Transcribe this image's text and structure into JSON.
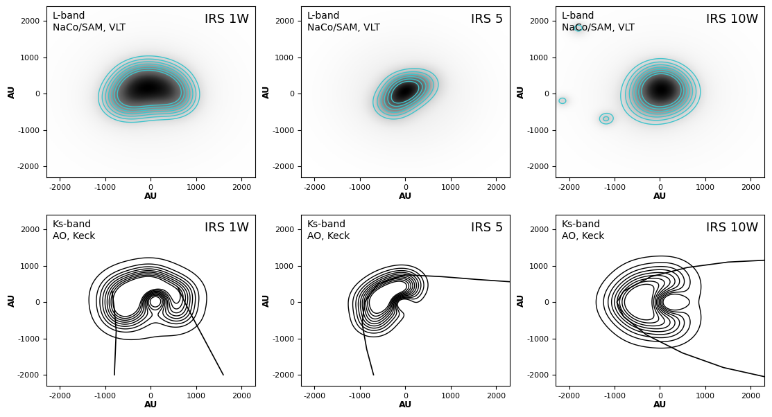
{
  "chart_data": [
    {
      "type": "image_contour",
      "title": "IRS 1W",
      "label": [
        "L-band",
        "NaCo/SAM, VLT"
      ],
      "xlabel": "AU",
      "ylabel": "AU",
      "xlim": [
        -2300,
        2300
      ],
      "ylim": [
        -2300,
        2400
      ],
      "xticks": [
        -2000,
        -1000,
        0,
        1000,
        2000
      ],
      "yticks": [
        -2000,
        -1000,
        0,
        1000,
        2000
      ],
      "color": "#3fc4cc",
      "image": true,
      "sources": [
        {
          "x": 0,
          "y": 200,
          "sigma": 500,
          "amplitude": 1.0
        },
        {
          "x": -600,
          "y": -200,
          "sigma": 400,
          "amplitude": 0.8
        },
        {
          "x": 600,
          "y": -200,
          "sigma": 350,
          "amplitude": 0.5
        },
        {
          "x": -300,
          "y": 300,
          "sigma": 400,
          "amplitude": 0.6
        },
        {
          "x": 400,
          "y": 200,
          "sigma": 400,
          "amplitude": 0.6
        },
        {
          "x": 0,
          "y": 0,
          "sigma": 1200,
          "amplitude": 0.25
        }
      ],
      "contour_levels": [
        0.55,
        0.7,
        0.85,
        1.0,
        1.15,
        1.3,
        1.45
      ],
      "curves": []
    },
    {
      "type": "image_contour",
      "title": "IRS 5",
      "label": [
        "L-band",
        "NaCo/SAM, VLT"
      ],
      "xlabel": "AU",
      "ylabel": "AU",
      "xlim": [
        -2300,
        2300
      ],
      "ylim": [
        -2300,
        2400
      ],
      "xticks": [
        -2000,
        -1000,
        0,
        1000,
        2000
      ],
      "yticks": [
        -2000,
        -1000,
        0,
        1000,
        2000
      ],
      "color": "#3fc4cc",
      "image": true,
      "sources": [
        {
          "x": 0,
          "y": 100,
          "sigma": 300,
          "amplitude": 1.0
        },
        {
          "x": -300,
          "y": -300,
          "sigma": 300,
          "amplitude": 0.6
        },
        {
          "x": 400,
          "y": 300,
          "sigma": 300,
          "amplitude": 0.4
        },
        {
          "x": 0,
          "y": 0,
          "sigma": 1000,
          "amplitude": 0.25
        }
      ],
      "contour_levels": [
        0.45,
        0.6,
        0.75,
        0.9,
        1.05,
        1.2
      ],
      "curves": []
    },
    {
      "type": "image_contour",
      "title": "IRS 10W",
      "label": [
        "L-band",
        "NaCo/SAM, VLT"
      ],
      "xlabel": "AU",
      "ylabel": "AU",
      "xlim": [
        -2300,
        2300
      ],
      "ylim": [
        -2300,
        2400
      ],
      "xticks": [
        -2000,
        -1000,
        0,
        1000,
        2000
      ],
      "yticks": [
        -2000,
        -1000,
        0,
        1000,
        2000
      ],
      "color": "#3fc4cc",
      "image": true,
      "sources": [
        {
          "x": 0,
          "y": 300,
          "sigma": 400,
          "amplitude": 1.0
        },
        {
          "x": -200,
          "y": -200,
          "sigma": 450,
          "amplitude": 0.7
        },
        {
          "x": 300,
          "y": 0,
          "sigma": 400,
          "amplitude": 0.6
        },
        {
          "x": 0,
          "y": 0,
          "sigma": 1200,
          "amplitude": 0.2
        },
        {
          "x": -1200,
          "y": -700,
          "sigma": 150,
          "amplitude": 0.5
        },
        {
          "x": -2150,
          "y": -200,
          "sigma": 120,
          "amplitude": 0.5
        },
        {
          "x": -1800,
          "y": 1800,
          "sigma": 150,
          "amplitude": 0.5
        }
      ],
      "contour_levels": [
        0.45,
        0.6,
        0.75,
        0.9,
        1.05,
        1.2,
        1.35
      ],
      "curves": []
    },
    {
      "type": "contour",
      "title": "IRS 1W",
      "label": [
        "Ks-band",
        "AO, Keck"
      ],
      "xlabel": "AU",
      "ylabel": "AU",
      "xlim": [
        -2300,
        2300
      ],
      "ylim": [
        -2300,
        2400
      ],
      "xticks": [
        -2000,
        -1000,
        0,
        1000,
        2000
      ],
      "yticks": [
        -2000,
        -1000,
        0,
        1000,
        2000
      ],
      "color": "#000000",
      "image": false,
      "sources": [
        {
          "x": -500,
          "y": 200,
          "sigma": 350,
          "amplitude": 1.0
        },
        {
          "x": 0,
          "y": 450,
          "sigma": 300,
          "amplitude": 0.9
        },
        {
          "x": 500,
          "y": 200,
          "sigma": 300,
          "amplitude": 0.8
        },
        {
          "x": -600,
          "y": -300,
          "sigma": 300,
          "amplitude": 0.6
        },
        {
          "x": 600,
          "y": -300,
          "sigma": 250,
          "amplitude": 0.4
        },
        {
          "x": 100,
          "y": 100,
          "sigma": 200,
          "amplitude": -1.2
        },
        {
          "x": 0,
          "y": 0,
          "sigma": 900,
          "amplitude": 0.2
        }
      ],
      "contour_levels": [
        0.12,
        0.25,
        0.35,
        0.45,
        0.55,
        0.65,
        0.75,
        0.85,
        0.95
      ],
      "curves": [
        [
          [
            -800,
            -2000
          ],
          [
            -780,
            -1400
          ],
          [
            -760,
            -800
          ],
          [
            -800,
            -200
          ],
          [
            -850,
            300
          ]
        ],
        [
          [
            1600,
            -2000
          ],
          [
            1300,
            -1300
          ],
          [
            1000,
            -600
          ],
          [
            750,
            0
          ],
          [
            600,
            400
          ]
        ]
      ]
    },
    {
      "type": "contour",
      "title": "IRS 5",
      "label": [
        "Ks-band",
        "AO, Keck"
      ],
      "xlabel": "AU",
      "ylabel": "AU",
      "xlim": [
        -2300,
        2300
      ],
      "ylim": [
        -2300,
        2400
      ],
      "xticks": [
        -2000,
        -1000,
        0,
        1000,
        2000
      ],
      "yticks": [
        -2000,
        -1000,
        0,
        1000,
        2000
      ],
      "color": "#000000",
      "image": false,
      "sources": [
        {
          "x": -600,
          "y": 0,
          "sigma": 300,
          "amplitude": 1.0
        },
        {
          "x": -300,
          "y": 300,
          "sigma": 300,
          "amplitude": 0.8
        },
        {
          "x": 0,
          "y": 500,
          "sigma": 250,
          "amplitude": 0.6
        },
        {
          "x": -700,
          "y": -500,
          "sigma": 250,
          "amplitude": 0.5
        },
        {
          "x": -100,
          "y": 0,
          "sigma": 150,
          "amplitude": -0.8
        }
      ],
      "contour_levels": [
        0.1,
        0.2,
        0.3,
        0.4,
        0.5,
        0.6,
        0.7,
        0.8,
        0.9,
        1.0
      ],
      "curves": [
        [
          [
            -700,
            -2000
          ],
          [
            -850,
            -1300
          ],
          [
            -950,
            -600
          ],
          [
            -900,
            0
          ],
          [
            -600,
            500
          ],
          [
            0,
            750
          ],
          [
            800,
            700
          ],
          [
            1600,
            620
          ],
          [
            2300,
            560
          ]
        ]
      ]
    },
    {
      "type": "contour",
      "title": "IRS 10W",
      "label": [
        "Ks-band",
        "AO, Keck"
      ],
      "xlabel": "AU",
      "ylabel": "AU",
      "xlim": [
        -2300,
        2300
      ],
      "ylim": [
        -2300,
        2400
      ],
      "xticks": [
        -2000,
        -1000,
        0,
        1000,
        2000
      ],
      "yticks": [
        -2000,
        -1000,
        0,
        1000,
        2000
      ],
      "color": "#000000",
      "image": false,
      "sources": [
        {
          "x": -600,
          "y": 0,
          "sigma": 350,
          "amplitude": 1.0
        },
        {
          "x": -300,
          "y": 400,
          "sigma": 350,
          "amplitude": 0.8
        },
        {
          "x": -300,
          "y": -400,
          "sigma": 350,
          "amplitude": 0.8
        },
        {
          "x": 200,
          "y": 600,
          "sigma": 300,
          "amplitude": 0.5
        },
        {
          "x": 200,
          "y": -600,
          "sigma": 300,
          "amplitude": 0.5
        },
        {
          "x": 200,
          "y": 0,
          "sigma": 200,
          "amplitude": -1.0
        },
        {
          "x": 0,
          "y": 0,
          "sigma": 1000,
          "amplitude": 0.2
        }
      ],
      "contour_levels": [
        0.15,
        0.3,
        0.45,
        0.6,
        0.75,
        0.9,
        1.05,
        1.2,
        1.35
      ],
      "curves": [
        [
          [
            2300,
            1150
          ],
          [
            1500,
            1100
          ],
          [
            600,
            950
          ],
          [
            -200,
            700
          ],
          [
            -800,
            300
          ],
          [
            -950,
            0
          ],
          [
            -800,
            -400
          ],
          [
            -300,
            -900
          ],
          [
            500,
            -1400
          ],
          [
            1400,
            -1800
          ],
          [
            2300,
            -2050
          ]
        ]
      ]
    }
  ]
}
